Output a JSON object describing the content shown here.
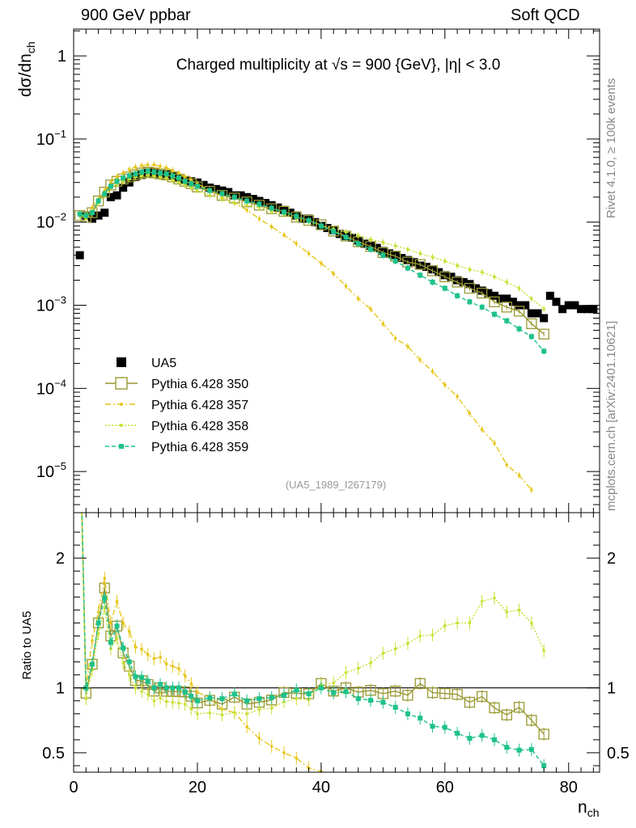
{
  "header": {
    "left": "900 GeV ppbar",
    "right": "Soft QCD"
  },
  "side_labels": {
    "top": "Rivet 4.1.0, ≥ 100k events",
    "bottom": "mcplots.cern.ch [arXiv:2401.10621]"
  },
  "chart_data": {
    "type": "scatter",
    "title": "Charged multiplicity at √s = 900 {GeV}, |η| < 3.0",
    "reference": "(UA5_1989_I267179)",
    "xlabel": "n_ch",
    "ylabel": "dσ/dn_ch",
    "ratio_ylabel": "Ratio to UA5",
    "xlim": [
      0,
      85
    ],
    "ylim": [
      3.2e-06,
      2.1
    ],
    "ratio_ylim": [
      0.35,
      2.35
    ],
    "x_ticks": [
      "0",
      "20",
      "40",
      "60",
      "80"
    ],
    "y_ticks": [
      "1",
      "10^-1",
      "10^-2",
      "10^-3",
      "10^-4",
      "10^-5"
    ],
    "ratio_ticks": [
      "0.5",
      "1",
      "2"
    ],
    "legend": [
      "UA5",
      "Pythia 6.428 350",
      "Pythia 6.428 357",
      "Pythia 6.428 358",
      "Pythia 6.428 359"
    ],
    "colors": {
      "ua5": "#000000",
      "p350": "#999933",
      "p357": "#e6c619",
      "p358": "#c8e031",
      "p359": "#1ec28a"
    },
    "series": [
      {
        "name": "UA5",
        "x": [
          1,
          2,
          3,
          4,
          5,
          6,
          7,
          8,
          9,
          10,
          11,
          12,
          13,
          14,
          15,
          16,
          17,
          18,
          19,
          20,
          21,
          22,
          23,
          24,
          25,
          26,
          27,
          28,
          29,
          30,
          31,
          32,
          33,
          34,
          35,
          36,
          37,
          38,
          39,
          40,
          41,
          42,
          43,
          44,
          45,
          46,
          47,
          48,
          49,
          50,
          51,
          52,
          53,
          54,
          55,
          56,
          57,
          58,
          59,
          60,
          61,
          62,
          63,
          64,
          65,
          66,
          67,
          68,
          69,
          70,
          71,
          72,
          73,
          74,
          75,
          76,
          77,
          78,
          79,
          80,
          81,
          82,
          83,
          84
        ],
        "values": [
          0.004,
          0.012,
          0.011,
          0.012,
          0.013,
          0.02,
          0.021,
          0.026,
          0.03,
          0.035,
          0.037,
          0.039,
          0.04,
          0.038,
          0.038,
          0.036,
          0.034,
          0.032,
          0.031,
          0.03,
          0.028,
          0.026,
          0.025,
          0.024,
          0.023,
          0.021,
          0.021,
          0.02,
          0.019,
          0.018,
          0.017,
          0.016,
          0.015,
          0.014,
          0.013,
          0.012,
          0.011,
          0.011,
          0.01,
          0.009,
          0.0085,
          0.008,
          0.0072,
          0.0068,
          0.0065,
          0.006,
          0.0055,
          0.0052,
          0.0049,
          0.0045,
          0.0042,
          0.004,
          0.0037,
          0.0035,
          0.0033,
          0.003,
          0.0029,
          0.0027,
          0.0025,
          0.0023,
          0.0022,
          0.002,
          0.0019,
          0.0018,
          0.0016,
          0.0015,
          0.0014,
          0.0013,
          0.0012,
          0.0012,
          0.0011,
          0.001,
          0.001,
          0.0008,
          0.0008,
          0.0007,
          0.0013,
          0.0011,
          0.0009,
          0.001,
          0.001,
          0.0009,
          0.0009,
          0.0009
        ]
      },
      {
        "name": "Pythia 6.428 350",
        "x": [
          1,
          2,
          3,
          4,
          5,
          6,
          7,
          8,
          9,
          10,
          11,
          12,
          13,
          14,
          15,
          16,
          17,
          18,
          19,
          20,
          22,
          24,
          26,
          28,
          30,
          32,
          34,
          36,
          38,
          40,
          42,
          44,
          46,
          48,
          50,
          52,
          54,
          56,
          58,
          60,
          62,
          64,
          66,
          68,
          70,
          72,
          74,
          76
        ],
        "values": [
          0.012,
          0.0115,
          0.013,
          0.018,
          0.023,
          0.028,
          0.031,
          0.033,
          0.035,
          0.037,
          0.039,
          0.04,
          0.039,
          0.038,
          0.037,
          0.035,
          0.033,
          0.031,
          0.029,
          0.0265,
          0.0235,
          0.021,
          0.0195,
          0.0175,
          0.016,
          0.0145,
          0.0135,
          0.0115,
          0.0105,
          0.0093,
          0.0078,
          0.0068,
          0.0058,
          0.0051,
          0.0043,
          0.0039,
          0.0033,
          0.0031,
          0.0026,
          0.0022,
          0.0019,
          0.0016,
          0.0014,
          0.0011,
          0.00095,
          0.00085,
          0.0006,
          0.00045
        ]
      },
      {
        "name": "Pythia 6.428 357",
        "x": [
          1,
          2,
          3,
          4,
          5,
          6,
          7,
          8,
          9,
          10,
          11,
          12,
          13,
          14,
          15,
          16,
          17,
          18,
          19,
          20,
          22,
          24,
          26,
          28,
          30,
          32,
          34,
          36,
          38,
          40,
          42,
          44,
          46,
          48,
          50,
          52,
          54,
          56,
          58,
          60,
          62,
          64,
          66,
          68,
          70,
          72,
          74,
          76
        ],
        "values": [
          0.012,
          0.012,
          0.015,
          0.019,
          0.024,
          0.03,
          0.035,
          0.039,
          0.043,
          0.046,
          0.048,
          0.049,
          0.049,
          0.047,
          0.045,
          0.042,
          0.039,
          0.035,
          0.032,
          0.029,
          0.024,
          0.02,
          0.017,
          0.014,
          0.011,
          0.0088,
          0.007,
          0.0055,
          0.0042,
          0.0032,
          0.0024,
          0.0017,
          0.0012,
          0.0009,
          0.0006,
          0.0004,
          0.00032,
          0.00022,
          0.00016,
          0.00011,
          8e-05,
          5e-05,
          3.2e-05,
          2.2e-05,
          1.2e-05,
          9e-06,
          6e-06,
          3e-06
        ]
      },
      {
        "name": "Pythia 6.428 358",
        "x": [
          1,
          2,
          3,
          4,
          5,
          6,
          7,
          8,
          9,
          10,
          11,
          12,
          13,
          14,
          15,
          16,
          17,
          18,
          19,
          20,
          22,
          24,
          26,
          28,
          30,
          32,
          34,
          36,
          38,
          40,
          42,
          44,
          46,
          48,
          50,
          52,
          54,
          56,
          58,
          60,
          62,
          64,
          66,
          68,
          70,
          72,
          74,
          76
        ],
        "values": [
          0.012,
          0.011,
          0.0125,
          0.017,
          0.021,
          0.026,
          0.029,
          0.031,
          0.033,
          0.035,
          0.036,
          0.037,
          0.036,
          0.035,
          0.034,
          0.032,
          0.03,
          0.028,
          0.026,
          0.024,
          0.021,
          0.019,
          0.017,
          0.016,
          0.015,
          0.0135,
          0.0125,
          0.011,
          0.01,
          0.0092,
          0.0083,
          0.0076,
          0.0069,
          0.0062,
          0.0057,
          0.0052,
          0.0047,
          0.0042,
          0.0038,
          0.0034,
          0.003,
          0.0027,
          0.0025,
          0.0022,
          0.0019,
          0.0016,
          0.0012,
          0.0009
        ]
      },
      {
        "name": "Pythia 6.428 359",
        "x": [
          1,
          2,
          3,
          4,
          5,
          6,
          7,
          8,
          9,
          10,
          11,
          12,
          13,
          14,
          15,
          16,
          17,
          18,
          19,
          20,
          22,
          24,
          26,
          28,
          30,
          32,
          34,
          36,
          38,
          40,
          42,
          44,
          46,
          48,
          50,
          52,
          54,
          56,
          58,
          60,
          62,
          64,
          66,
          68,
          70,
          72,
          74,
          76
        ],
        "values": [
          0.0125,
          0.012,
          0.013,
          0.018,
          0.022,
          0.027,
          0.031,
          0.034,
          0.036,
          0.038,
          0.04,
          0.041,
          0.04,
          0.039,
          0.038,
          0.036,
          0.034,
          0.031,
          0.029,
          0.027,
          0.024,
          0.022,
          0.02,
          0.018,
          0.0165,
          0.0148,
          0.0132,
          0.0118,
          0.0105,
          0.009,
          0.0077,
          0.0066,
          0.0055,
          0.0047,
          0.004,
          0.0034,
          0.0028,
          0.0023,
          0.0019,
          0.0016,
          0.0013,
          0.0011,
          0.00095,
          0.00078,
          0.00065,
          0.00052,
          0.00042,
          0.00028
        ]
      }
    ]
  }
}
